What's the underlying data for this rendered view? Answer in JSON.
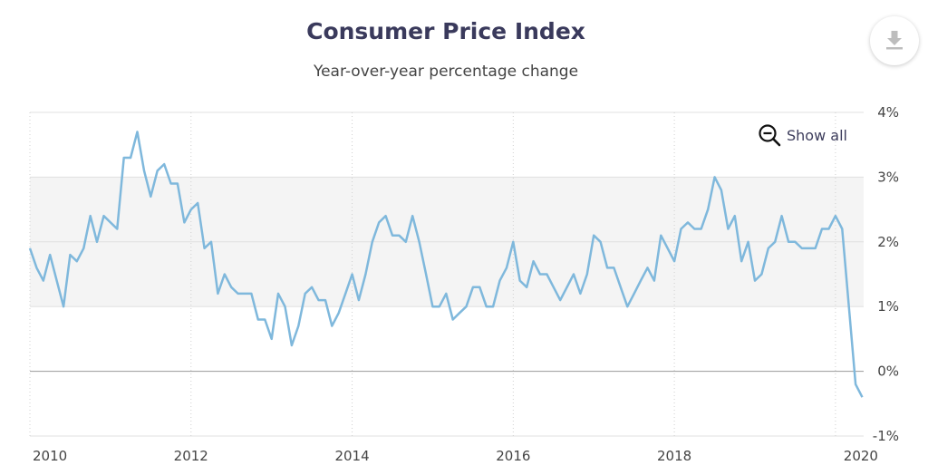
{
  "header": {
    "title": "Consumer Price Index",
    "subtitle": "Year-over-year percentage change"
  },
  "controls": {
    "download_icon": "download-icon",
    "zoom_icon": "zoom-out-icon",
    "show_all_label": "Show all"
  },
  "colors": {
    "line": "#7fb8dc",
    "band": "#f4f4f4",
    "grid": "#e0e0e0",
    "zero_line": "#999999"
  },
  "chart_data": {
    "type": "line",
    "title": "Consumer Price Index",
    "subtitle": "Year-over-year percentage change",
    "xlabel": "",
    "ylabel": "",
    "x_ticks": [
      "2010",
      "2012",
      "2014",
      "2016",
      "2018",
      "2020"
    ],
    "y_ticks": [
      "4%",
      "3%",
      "2%",
      "1%",
      "0%",
      "-1%"
    ],
    "y_tick_values": [
      4,
      3,
      2,
      1,
      0,
      -1
    ],
    "x_tick_values": [
      2010,
      2012,
      2014,
      2016,
      2018,
      2020
    ],
    "xlim": [
      2010,
      2020.35
    ],
    "ylim": [
      -1,
      4
    ],
    "band": [
      1,
      3
    ],
    "grid": true,
    "legend": "none",
    "series": [
      {
        "x": [
          2010.0,
          2010.083,
          2010.167,
          2010.25,
          2010.333,
          2010.417,
          2010.5,
          2010.583,
          2010.667,
          2010.75,
          2010.833,
          2010.917,
          2011.0,
          2011.083,
          2011.167,
          2011.25,
          2011.333,
          2011.417,
          2011.5,
          2011.583,
          2011.667,
          2011.75,
          2011.833,
          2011.917,
          2012.0,
          2012.083,
          2012.167,
          2012.25,
          2012.333,
          2012.417,
          2012.5,
          2012.583,
          2012.667,
          2012.75,
          2012.833,
          2012.917,
          2013.0,
          2013.083,
          2013.167,
          2013.25,
          2013.333,
          2013.417,
          2013.5,
          2013.583,
          2013.667,
          2013.75,
          2013.833,
          2013.917,
          2014.0,
          2014.083,
          2014.167,
          2014.25,
          2014.333,
          2014.417,
          2014.5,
          2014.583,
          2014.667,
          2014.75,
          2014.833,
          2014.917,
          2015.0,
          2015.083,
          2015.167,
          2015.25,
          2015.333,
          2015.417,
          2015.5,
          2015.583,
          2015.667,
          2015.75,
          2015.833,
          2015.917,
          2016.0,
          2016.083,
          2016.167,
          2016.25,
          2016.333,
          2016.417,
          2016.5,
          2016.583,
          2016.667,
          2016.75,
          2016.833,
          2016.917,
          2017.0,
          2017.083,
          2017.167,
          2017.25,
          2017.333,
          2017.417,
          2017.5,
          2017.583,
          2017.667,
          2017.75,
          2017.833,
          2017.917,
          2018.0,
          2018.083,
          2018.167,
          2018.25,
          2018.333,
          2018.417,
          2018.5,
          2018.583,
          2018.667,
          2018.75,
          2018.833,
          2018.917,
          2019.0,
          2019.083,
          2019.167,
          2019.25,
          2019.333,
          2019.417,
          2019.5,
          2019.583,
          2019.667,
          2019.75,
          2019.833,
          2019.917,
          2020.0,
          2020.083,
          2020.167,
          2020.25,
          2020.333
        ],
        "y": [
          1.9,
          1.6,
          1.4,
          1.8,
          1.4,
          1.0,
          1.8,
          1.7,
          1.9,
          2.4,
          2.0,
          2.4,
          2.3,
          2.2,
          3.3,
          3.3,
          3.7,
          3.1,
          2.7,
          3.1,
          3.2,
          2.9,
          2.9,
          2.3,
          2.5,
          2.6,
          1.9,
          2.0,
          1.2,
          1.5,
          1.3,
          1.2,
          1.2,
          1.2,
          0.8,
          0.8,
          0.5,
          1.2,
          1.0,
          0.4,
          0.7,
          1.2,
          1.3,
          1.1,
          1.1,
          0.7,
          0.9,
          1.2,
          1.5,
          1.1,
          1.5,
          2.0,
          2.3,
          2.4,
          2.1,
          2.1,
          2.0,
          2.4,
          2.0,
          1.5,
          1.0,
          1.0,
          1.2,
          0.8,
          0.9,
          1.0,
          1.3,
          1.3,
          1.0,
          1.0,
          1.4,
          1.6,
          2.0,
          1.4,
          1.3,
          1.7,
          1.5,
          1.5,
          1.3,
          1.1,
          1.3,
          1.5,
          1.2,
          1.5,
          2.1,
          2.0,
          1.6,
          1.6,
          1.3,
          1.0,
          1.2,
          1.4,
          1.6,
          1.4,
          2.1,
          1.9,
          1.7,
          2.2,
          2.3,
          2.2,
          2.2,
          2.5,
          3.0,
          2.8,
          2.2,
          2.4,
          1.7,
          2.0,
          1.4,
          1.5,
          1.9,
          2.0,
          2.4,
          2.0,
          2.0,
          1.9,
          1.9,
          1.9,
          2.2,
          2.2,
          2.4,
          2.2,
          1.0,
          -0.2,
          -0.4
        ]
      }
    ]
  }
}
